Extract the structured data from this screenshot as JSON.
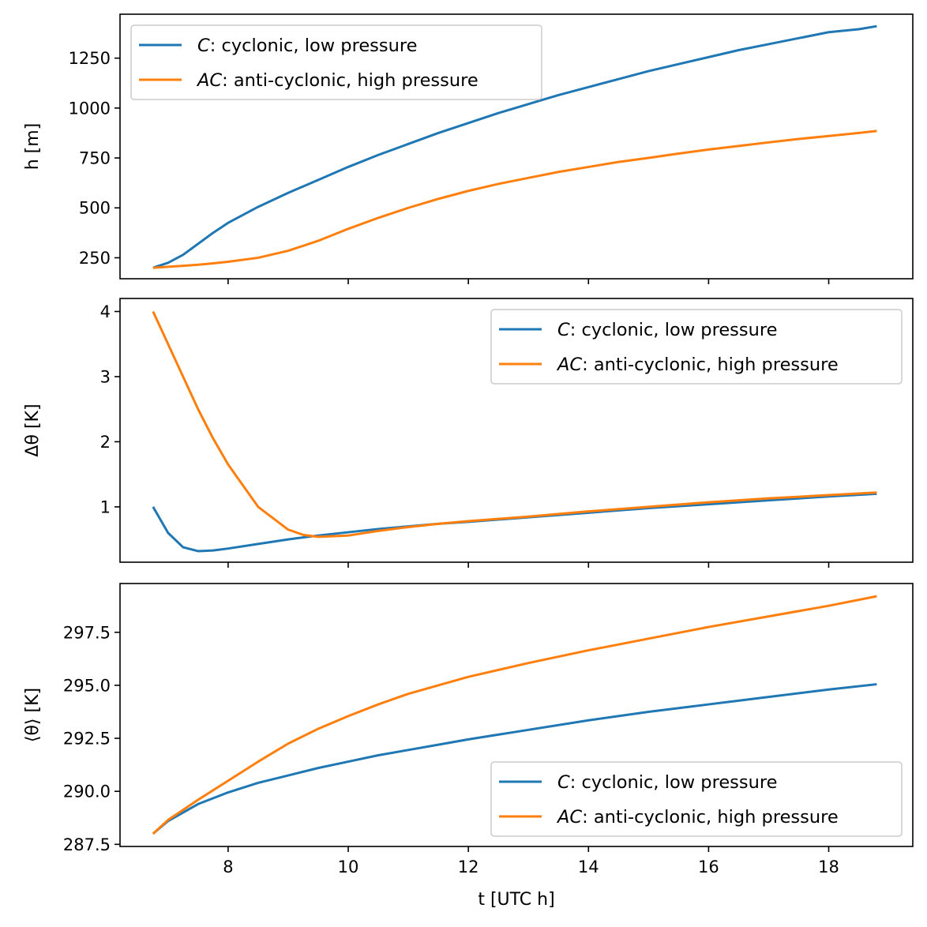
{
  "chart_data": [
    {
      "type": "line",
      "xlabel": "",
      "ylabel": "h [m]",
      "xlim": [
        6.2,
        19.4
      ],
      "ylim": [
        145,
        1470
      ],
      "xticks": [
        8,
        10,
        12,
        14,
        16,
        18
      ],
      "xtick_labels_visible": false,
      "yticks": [
        250,
        500,
        750,
        1000,
        1250
      ],
      "ytick_labels": [
        "250",
        "500",
        "750",
        "1000",
        "1250"
      ],
      "grid": false,
      "legend": "top-left",
      "x": [
        6.75,
        7.0,
        7.25,
        7.5,
        7.75,
        8.0,
        8.5,
        9.0,
        9.5,
        10.0,
        10.5,
        11.0,
        11.5,
        12.0,
        12.5,
        13.0,
        13.5,
        14.0,
        14.5,
        15.0,
        15.5,
        16.0,
        16.5,
        17.0,
        17.5,
        18.0,
        18.5,
        18.8
      ],
      "series": [
        {
          "name": "C",
          "name_suffix": ": cyclonic, low pressure",
          "color": "#1f77b4",
          "values": [
            200,
            225,
            265,
            320,
            375,
            425,
            505,
            575,
            640,
            705,
            765,
            820,
            875,
            925,
            975,
            1020,
            1065,
            1105,
            1145,
            1185,
            1220,
            1255,
            1290,
            1320,
            1350,
            1380,
            1395,
            1410
          ]
        },
        {
          "name": "AC",
          "name_suffix": ": anti-cyclonic, high pressure",
          "color": "#ff7f0e",
          "values": [
            200,
            205,
            210,
            215,
            222,
            230,
            250,
            285,
            335,
            395,
            450,
            500,
            545,
            585,
            620,
            650,
            680,
            705,
            730,
            750,
            772,
            792,
            810,
            828,
            845,
            860,
            875,
            885
          ]
        }
      ]
    },
    {
      "type": "line",
      "xlabel": "",
      "ylabel": "Δθ [K]",
      "xlim": [
        6.2,
        19.4
      ],
      "ylim": [
        0.15,
        4.2
      ],
      "xticks": [
        8,
        10,
        12,
        14,
        16,
        18
      ],
      "xtick_labels_visible": false,
      "yticks": [
        1,
        2,
        3,
        4
      ],
      "ytick_labels": [
        "1",
        "2",
        "3",
        "4"
      ],
      "grid": false,
      "legend": "top-right",
      "x": [
        6.75,
        7.0,
        7.25,
        7.5,
        7.75,
        8.0,
        8.5,
        9.0,
        9.25,
        9.5,
        10.0,
        10.5,
        11.0,
        11.5,
        12.0,
        13.0,
        14.0,
        15.0,
        16.0,
        17.0,
        18.0,
        18.8
      ],
      "series": [
        {
          "name": "C",
          "name_suffix": ": cyclonic, low pressure",
          "color": "#1f77b4",
          "values": [
            1.0,
            0.6,
            0.38,
            0.32,
            0.33,
            0.36,
            0.43,
            0.5,
            0.53,
            0.56,
            0.61,
            0.66,
            0.7,
            0.74,
            0.77,
            0.84,
            0.91,
            0.98,
            1.04,
            1.1,
            1.16,
            1.2
          ]
        },
        {
          "name": "AC",
          "name_suffix": ": anti-cyclonic, high pressure",
          "color": "#ff7f0e",
          "values": [
            4.0,
            3.5,
            3.0,
            2.5,
            2.05,
            1.65,
            1.0,
            0.65,
            0.57,
            0.54,
            0.56,
            0.63,
            0.69,
            0.74,
            0.78,
            0.85,
            0.93,
            1.0,
            1.07,
            1.13,
            1.18,
            1.22
          ]
        }
      ]
    },
    {
      "type": "line",
      "xlabel": "t [UTC h]",
      "ylabel": "⟨θ⟩ [K]",
      "xlim": [
        6.2,
        19.4
      ],
      "ylim": [
        287.4,
        299.8
      ],
      "xticks": [
        8,
        10,
        12,
        14,
        16,
        18
      ],
      "xtick_labels": [
        "8",
        "10",
        "12",
        "14",
        "16",
        "18"
      ],
      "xtick_labels_visible": true,
      "yticks": [
        287.5,
        290.0,
        292.5,
        295.0,
        297.5
      ],
      "ytick_labels": [
        "287.5",
        "290.0",
        "292.5",
        "295.0",
        "297.5"
      ],
      "grid": false,
      "legend": "bottom-right",
      "x": [
        6.75,
        7.0,
        7.5,
        8.0,
        8.5,
        9.0,
        9.5,
        10.0,
        10.5,
        11.0,
        11.5,
        12.0,
        13.0,
        14.0,
        15.0,
        16.0,
        17.0,
        18.0,
        18.8
      ],
      "series": [
        {
          "name": "C",
          "name_suffix": ": cyclonic, low pressure",
          "color": "#1f77b4",
          "values": [
            288.0,
            288.6,
            289.4,
            289.95,
            290.4,
            290.75,
            291.1,
            291.4,
            291.7,
            291.95,
            292.2,
            292.45,
            292.9,
            293.35,
            293.75,
            294.1,
            294.45,
            294.8,
            295.05
          ]
        },
        {
          "name": "AC",
          "name_suffix": ": anti-cyclonic, high pressure",
          "color": "#ff7f0e",
          "values": [
            288.0,
            288.65,
            289.6,
            290.5,
            291.4,
            292.25,
            292.95,
            293.55,
            294.1,
            294.6,
            295.0,
            295.4,
            296.05,
            296.65,
            297.2,
            297.75,
            298.25,
            298.75,
            299.2
          ]
        }
      ]
    }
  ]
}
